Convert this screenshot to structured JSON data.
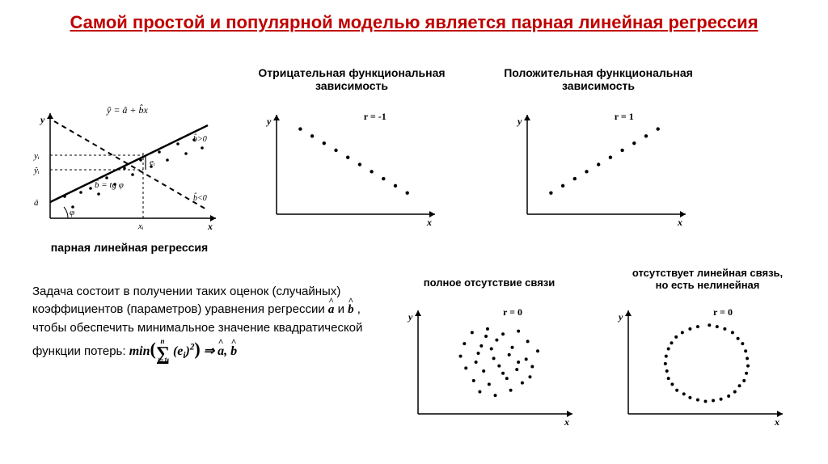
{
  "title": {
    "text": "Самой простой и популярной моделью является парная линейная регрессия",
    "color": "#c00000",
    "fontsize": 22
  },
  "labels": {
    "neg": "Отрицательная функциональная\nзависимость",
    "pos": "Положительная функциональная\nзависимость",
    "pair": "парная линейная регрессия",
    "none": "полное отсутствие связи",
    "nonlin": "отсутствует линейная связь,\nно есть нелинейная",
    "label_fontsize": 14,
    "label_small_fontsize": 13
  },
  "body": {
    "text_parts": [
      "Задача состоит в получении таких оценок (случайных) коэффициентов (параметров) уравнения регрессии ",
      " и ",
      " , чтобы обеспечить минимальное значение квадратической функции потерь: "
    ],
    "a_hat": "a",
    "b_hat": "b",
    "formula_tex": "min(∑ᵢ₌₁ⁿ (eᵢ)²) ⇒ â, b̂",
    "fontsize": 15
  },
  "regression_diagram": {
    "type": "schematic",
    "axis_labels": {
      "x": "x",
      "y": "y"
    },
    "tick_labels": {
      "xi": "xᵢ",
      "yi": "yᵢ",
      "yhat": "ŷᵢ",
      "ahat": "â"
    },
    "line_eq": "ŷ = â + b̂x",
    "angle_eq": "b̂ = tg φ",
    "bpos": "b̂>0",
    "bneg": "b̂<0",
    "ei": "eᵢ",
    "phi": "φ",
    "colors": {
      "line": "#000000",
      "dash": "#000000",
      "bg": "#ffffff"
    },
    "points": [
      [
        38,
        105
      ],
      [
        48,
        118
      ],
      [
        58,
        100
      ],
      [
        70,
        95
      ],
      [
        80,
        102
      ],
      [
        90,
        82
      ],
      [
        100,
        90
      ],
      [
        112,
        70
      ],
      [
        122,
        78
      ],
      [
        132,
        60
      ],
      [
        145,
        68
      ],
      [
        155,
        50
      ],
      [
        165,
        60
      ],
      [
        178,
        40
      ],
      [
        188,
        52
      ],
      [
        198,
        35
      ],
      [
        208,
        45
      ]
    ]
  },
  "scatter_neg": {
    "type": "scatter",
    "title": "r = -1",
    "points": [
      [
        30,
        20
      ],
      [
        45,
        30
      ],
      [
        60,
        40
      ],
      [
        75,
        50
      ],
      [
        90,
        60
      ],
      [
        105,
        70
      ],
      [
        120,
        80
      ],
      [
        135,
        90
      ],
      [
        150,
        100
      ],
      [
        165,
        110
      ]
    ],
    "xlim": [
      0,
      200
    ],
    "ylim": [
      0,
      140
    ],
    "marker_size": 2.2,
    "marker_color": "#000000",
    "axis_color": "#000000",
    "background_color": "#ffffff",
    "axis_labels": {
      "x": "x",
      "y": "y"
    }
  },
  "scatter_pos": {
    "type": "scatter",
    "title": "r = 1",
    "points": [
      [
        30,
        110
      ],
      [
        45,
        100
      ],
      [
        60,
        90
      ],
      [
        75,
        80
      ],
      [
        90,
        70
      ],
      [
        105,
        60
      ],
      [
        120,
        50
      ],
      [
        135,
        40
      ],
      [
        150,
        30
      ],
      [
        165,
        20
      ]
    ],
    "xlim": [
      0,
      200
    ],
    "ylim": [
      0,
      140
    ],
    "marker_size": 2.2,
    "marker_color": "#000000",
    "axis_color": "#000000",
    "background_color": "#ffffff",
    "axis_labels": {
      "x": "x",
      "y": "y"
    }
  },
  "scatter_none": {
    "type": "scatter",
    "title": "r = 0",
    "points": [
      [
        70,
        30
      ],
      [
        90,
        25
      ],
      [
        110,
        32
      ],
      [
        130,
        28
      ],
      [
        60,
        45
      ],
      [
        82,
        48
      ],
      [
        102,
        40
      ],
      [
        122,
        50
      ],
      [
        142,
        42
      ],
      [
        55,
        62
      ],
      [
        78,
        58
      ],
      [
        98,
        65
      ],
      [
        118,
        60
      ],
      [
        140,
        66
      ],
      [
        155,
        55
      ],
      [
        62,
        78
      ],
      [
        85,
        82
      ],
      [
        105,
        75
      ],
      [
        128,
        80
      ],
      [
        148,
        76
      ],
      [
        72,
        95
      ],
      [
        92,
        100
      ],
      [
        115,
        92
      ],
      [
        135,
        98
      ],
      [
        80,
        110
      ],
      [
        100,
        115
      ],
      [
        120,
        108
      ],
      [
        95,
        52
      ],
      [
        110,
        85
      ],
      [
        75,
        70
      ],
      [
        130,
        70
      ],
      [
        88,
        35
      ],
      [
        145,
        90
      ]
    ],
    "xlim": [
      0,
      200
    ],
    "ylim": [
      0,
      140
    ],
    "marker_size": 2.0,
    "marker_color": "#000000",
    "axis_color": "#000000",
    "background_color": "#ffffff",
    "axis_labels": {
      "x": "x",
      "y": "y"
    }
  },
  "scatter_nonlin": {
    "type": "scatter",
    "title": "r = 0",
    "points": [
      [
        105,
        20
      ],
      [
        125,
        25
      ],
      [
        142,
        38
      ],
      [
        152,
        55
      ],
      [
        155,
        75
      ],
      [
        150,
        95
      ],
      [
        138,
        110
      ],
      [
        120,
        120
      ],
      [
        100,
        123
      ],
      [
        80,
        118
      ],
      [
        63,
        108
      ],
      [
        52,
        92
      ],
      [
        48,
        72
      ],
      [
        52,
        52
      ],
      [
        62,
        36
      ],
      [
        80,
        25
      ],
      [
        90,
        22
      ],
      [
        115,
        22
      ],
      [
        135,
        30
      ],
      [
        148,
        45
      ],
      [
        154,
        65
      ],
      [
        153,
        85
      ],
      [
        144,
        102
      ],
      [
        130,
        116
      ],
      [
        110,
        122
      ],
      [
        90,
        121
      ],
      [
        72,
        113
      ],
      [
        57,
        100
      ],
      [
        50,
        82
      ],
      [
        49,
        62
      ],
      [
        56,
        44
      ],
      [
        70,
        30
      ]
    ],
    "xlim": [
      0,
      200
    ],
    "ylim": [
      0,
      140
    ],
    "marker_size": 2.0,
    "marker_color": "#000000",
    "axis_color": "#000000",
    "background_color": "#ffffff",
    "axis_labels": {
      "x": "x",
      "y": "y"
    }
  }
}
